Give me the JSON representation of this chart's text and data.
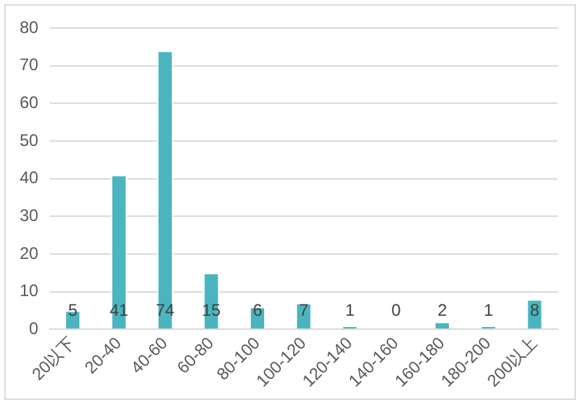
{
  "chart_data": {
    "type": "bar",
    "categories": [
      "20以下",
      "20-40",
      "40-60",
      "60-80",
      "80-100",
      "100-120",
      "120-140",
      "140-160",
      "160-180",
      "180-200",
      "200以上"
    ],
    "values": [
      5,
      41,
      74,
      15,
      6,
      7,
      1,
      0,
      2,
      1,
      8
    ],
    "color": "#4bb5bf",
    "ylim": [
      0,
      80
    ],
    "yticks": [
      0,
      10,
      20,
      30,
      40,
      50,
      60,
      70,
      80
    ],
    "grid": "y",
    "legend": false,
    "data_labels": true
  }
}
